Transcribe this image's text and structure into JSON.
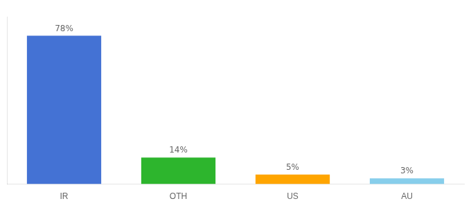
{
  "chart_data": {
    "type": "bar",
    "categories": [
      "IR",
      "OTH",
      "US",
      "AU"
    ],
    "values": [
      78,
      14,
      5,
      3
    ],
    "value_labels": [
      "78%",
      "14%",
      "5%",
      "3%"
    ],
    "data_labels": true,
    "colors": [
      "#4472D4",
      "#2DB52D",
      "#FFA500",
      "#87CEEB"
    ],
    "ylim": [
      0,
      88
    ],
    "grid": false,
    "tick_labels": "x"
  }
}
